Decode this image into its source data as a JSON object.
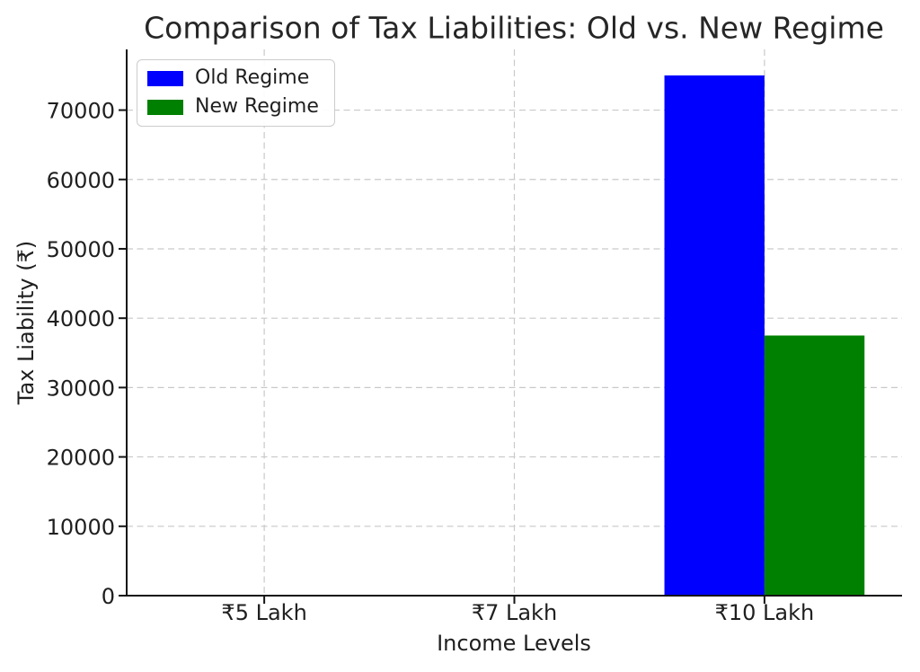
{
  "chart_data": {
    "type": "bar",
    "title": "Comparison of Tax Liabilities: Old vs. New Regime",
    "xlabel": "Income Levels",
    "ylabel": "Tax Liability (₹)",
    "categories": [
      "₹5 Lakh",
      "₹7 Lakh",
      "₹10 Lakh"
    ],
    "series": [
      {
        "name": "Old Regime",
        "color": "#0000ff",
        "values": [
          0,
          0,
          75000
        ]
      },
      {
        "name": "New Regime",
        "color": "#008000",
        "values": [
          0,
          0,
          37500
        ]
      }
    ],
    "ylim": [
      0,
      78750
    ],
    "yticks": [
      0,
      10000,
      20000,
      30000,
      40000,
      50000,
      60000,
      70000
    ],
    "bar_width": 0.4,
    "grid": {
      "linestyle": "dashed",
      "color": "#c9c9c9",
      "which": "both"
    },
    "legend": {
      "location": "upper left",
      "entries": [
        "Old Regime",
        "New Regime"
      ]
    }
  }
}
